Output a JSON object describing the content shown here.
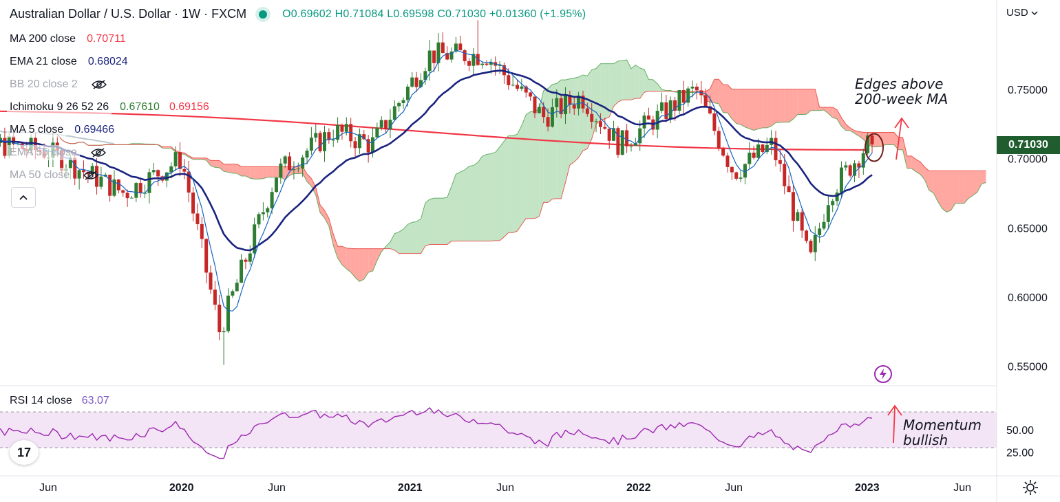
{
  "header": {
    "title": "Australian Dollar / U.S. Dollar · 1W · FXCM",
    "ohlc": "O0.69602 H0.71084 L0.69598 C0.71030 +0.01360 (+1.95%)",
    "currency": "USD",
    "currency_icon": "chevron-down-icon"
  },
  "indicators": [
    {
      "name": "MA 200 close",
      "value": "0.70711",
      "color": "#f23645",
      "hidden": false
    },
    {
      "name": "EMA 21 close",
      "value": "0.68024",
      "color": "#1a237e",
      "hidden": false
    },
    {
      "name": "BB 20 close 2",
      "value": "",
      "color": "",
      "hidden": true
    },
    {
      "name": "Ichimoku 9 26 52 26",
      "value": "0.67610",
      "value2": "0.69156",
      "color": "#2e7d32",
      "color2": "#f23645",
      "hidden": false
    },
    {
      "name": "MA 5 close",
      "value": "0.69466",
      "color": "#1a237e",
      "hidden": false
    },
    {
      "name": "EMA 55 close",
      "value": "",
      "color": "",
      "hidden": true
    },
    {
      "name": "MA 50 close",
      "value": "",
      "color": "",
      "hidden": true
    }
  ],
  "rsi": {
    "name": "RSI 14 close",
    "value": "63.07"
  },
  "last_price": "0.71030",
  "annotations": {
    "price_note_line1": "Edges above",
    "price_note_line2": "200-week MA",
    "rsi_note_line1": "Momentum",
    "rsi_note_line2": "bullish"
  },
  "logo_text": "17",
  "colors": {
    "up": "#2e7d32",
    "down": "#c62828",
    "ma200": "#f23645",
    "ema21": "#1a237e",
    "rsi": "#9c27b0",
    "cloud_bull": "#a5d6a7",
    "cloud_bear": "#ff8a80"
  },
  "chart_data": {
    "type": "candlestick",
    "symbol": "AUDUSD",
    "timeframe": "1W",
    "y_axis": {
      "ticks": [
        "0.75000",
        "0.70000",
        "0.65000",
        "0.60000",
        "0.55000"
      ],
      "range": [
        0.535,
        0.79
      ]
    },
    "x_axis": {
      "ticks": [
        "Jun",
        "2020",
        "Jun",
        "2021",
        "Jun",
        "2022",
        "Jun",
        "2023",
        "Jun"
      ]
    },
    "price_waypoints": [
      {
        "x": "Jun 2019",
        "close": 0.705
      },
      {
        "x": "Oct 2019",
        "close": 0.675
      },
      {
        "x": "Jan 2020",
        "close": 0.7
      },
      {
        "x": "Mar 2020",
        "close": 0.575
      },
      {
        "x": "Jun 2020",
        "close": 0.69
      },
      {
        "x": "Sep 2020",
        "close": 0.72
      },
      {
        "x": "Nov 2020",
        "close": 0.71
      },
      {
        "x": "Feb 2021",
        "close": 0.775
      },
      {
        "x": "May 2021",
        "close": 0.775
      },
      {
        "x": "Aug 2021",
        "close": 0.73
      },
      {
        "x": "Oct 2021",
        "close": 0.745
      },
      {
        "x": "Dec 2021",
        "close": 0.71
      },
      {
        "x": "Apr 2022",
        "close": 0.75
      },
      {
        "x": "Jun 2022",
        "close": 0.69
      },
      {
        "x": "Aug 2022",
        "close": 0.71
      },
      {
        "x": "Oct 2022",
        "close": 0.625
      },
      {
        "x": "Nov 2022",
        "close": 0.675
      },
      {
        "x": "Jan 2023",
        "close": 0.71
      }
    ],
    "rsi_panel": {
      "ticks": [
        "50.00",
        "25.00"
      ],
      "overbought": 70,
      "oversold": 30,
      "last": 63.07
    }
  }
}
